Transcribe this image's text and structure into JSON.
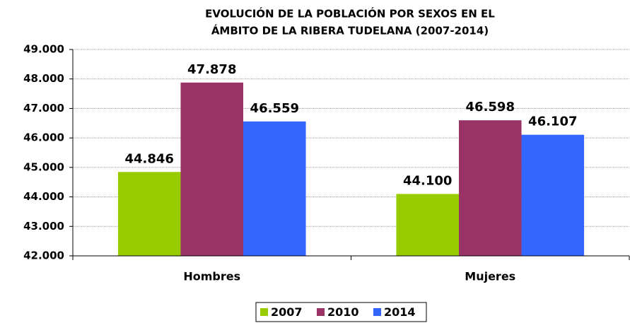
{
  "chart_data": {
    "type": "bar",
    "title": [
      "EVOLUCIÓN DE LA POBLACIÓN POR SEXOS EN EL",
      "ÁMBITO DE  LA RIBERA TUDELANA (2007-2014)"
    ],
    "categories": [
      "Hombres",
      "Mujeres"
    ],
    "series": [
      {
        "name": "2007",
        "color": "#99cc00",
        "values": [
          44846,
          44100
        ],
        "value_labels": [
          "44.846",
          "44.100"
        ]
      },
      {
        "name": "2010",
        "color": "#993366",
        "values": [
          47878,
          46598
        ],
        "value_labels": [
          "47.878",
          "46.598"
        ]
      },
      {
        "name": "2014",
        "color": "#3366ff",
        "values": [
          46559,
          46107
        ],
        "value_labels": [
          "46.559",
          "46.107"
        ]
      }
    ],
    "ylim": [
      42000,
      49000
    ],
    "yticks": [
      {
        "value": 42000,
        "label": "42.000"
      },
      {
        "value": 43000,
        "label": "43.000"
      },
      {
        "value": 44000,
        "label": "44.000"
      },
      {
        "value": 45000,
        "label": "45.000"
      },
      {
        "value": 46000,
        "label": "46.000"
      },
      {
        "value": 47000,
        "label": "47.000"
      },
      {
        "value": 48000,
        "label": "48.000"
      },
      {
        "value": 49000,
        "label": "49.000"
      }
    ],
    "grid": true,
    "legend": "bottom"
  }
}
